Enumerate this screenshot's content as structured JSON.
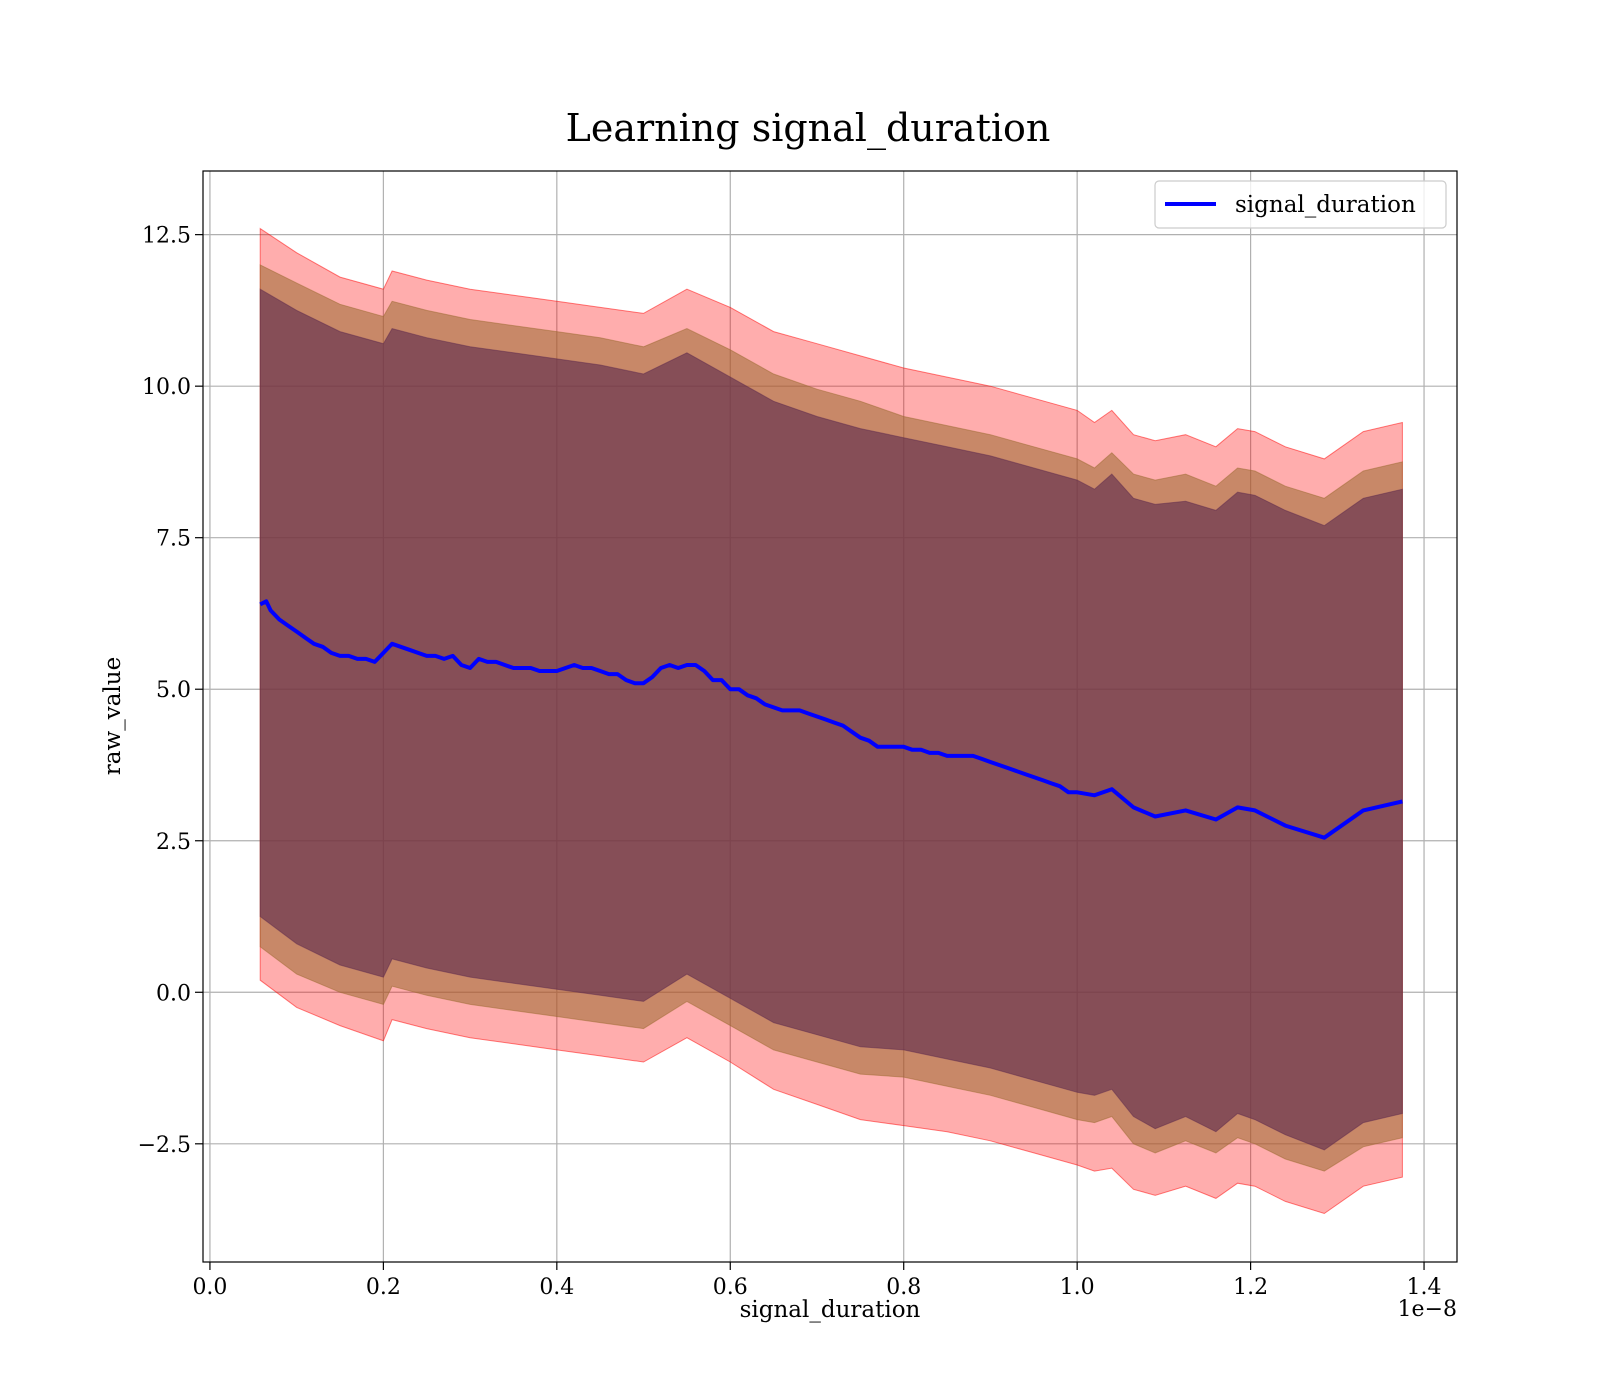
{
  "chart_data": {
    "type": "line",
    "title": "Learning signal_duration",
    "xlabel": "signal_duration",
    "ylabel": "raw_value",
    "x_offset_label": "1e−8",
    "xlim": [
      -0.008,
      1.438
    ],
    "ylim": [
      -4.45,
      13.55
    ],
    "x_ticks": [
      0.0,
      0.2,
      0.4,
      0.6,
      0.8,
      1.0,
      1.2,
      1.4
    ],
    "x_tick_labels": [
      "0.0",
      "0.2",
      "0.4",
      "0.6",
      "0.8",
      "1.0",
      "1.2",
      "1.4"
    ],
    "y_ticks": [
      -2.5,
      0.0,
      2.5,
      5.0,
      7.5,
      10.0,
      12.5
    ],
    "y_tick_labels": [
      "−2.5",
      "0.0",
      "2.5",
      "5.0",
      "7.5",
      "10.0",
      "12.5"
    ],
    "grid": true,
    "legend": {
      "placement": "top-right",
      "entries": [
        "signal_duration"
      ]
    },
    "colors": {
      "line": "#0000ff",
      "band_outer": "#ff0000",
      "band_middle": "#9b6a2f",
      "band_inner": "#5e2a4e"
    },
    "series": [
      {
        "name": "signal_duration",
        "x": [
          0.058,
          0.065,
          0.07,
          0.08,
          0.09,
          0.1,
          0.11,
          0.12,
          0.13,
          0.14,
          0.15,
          0.16,
          0.17,
          0.18,
          0.19,
          0.2,
          0.21,
          0.22,
          0.23,
          0.24,
          0.25,
          0.26,
          0.27,
          0.28,
          0.29,
          0.3,
          0.31,
          0.32,
          0.33,
          0.34,
          0.35,
          0.36,
          0.37,
          0.38,
          0.39,
          0.4,
          0.41,
          0.42,
          0.43,
          0.44,
          0.45,
          0.46,
          0.47,
          0.48,
          0.49,
          0.5,
          0.51,
          0.52,
          0.53,
          0.54,
          0.55,
          0.56,
          0.57,
          0.58,
          0.59,
          0.6,
          0.61,
          0.62,
          0.63,
          0.64,
          0.65,
          0.66,
          0.67,
          0.68,
          0.69,
          0.7,
          0.71,
          0.72,
          0.73,
          0.74,
          0.75,
          0.76,
          0.77,
          0.78,
          0.79,
          0.8,
          0.81,
          0.82,
          0.83,
          0.84,
          0.85,
          0.86,
          0.87,
          0.88,
          0.89,
          0.9,
          0.91,
          0.92,
          0.93,
          0.94,
          0.95,
          0.96,
          0.97,
          0.98,
          0.99,
          1.0,
          1.02,
          1.04,
          1.065,
          1.09,
          1.125,
          1.16,
          1.185,
          1.205,
          1.24,
          1.285,
          1.33,
          1.375
        ],
        "y": [
          6.4,
          6.45,
          6.3,
          6.15,
          6.05,
          5.95,
          5.85,
          5.75,
          5.7,
          5.6,
          5.55,
          5.55,
          5.5,
          5.5,
          5.45,
          5.6,
          5.75,
          5.7,
          5.65,
          5.6,
          5.55,
          5.55,
          5.5,
          5.55,
          5.4,
          5.35,
          5.5,
          5.45,
          5.45,
          5.4,
          5.35,
          5.35,
          5.35,
          5.3,
          5.3,
          5.3,
          5.35,
          5.4,
          5.35,
          5.35,
          5.3,
          5.25,
          5.25,
          5.15,
          5.1,
          5.1,
          5.2,
          5.35,
          5.4,
          5.35,
          5.4,
          5.4,
          5.3,
          5.15,
          5.15,
          5.0,
          5.0,
          4.9,
          4.85,
          4.75,
          4.7,
          4.65,
          4.65,
          4.65,
          4.6,
          4.55,
          4.5,
          4.45,
          4.4,
          4.3,
          4.2,
          4.15,
          4.05,
          4.05,
          4.05,
          4.05,
          4.0,
          4.0,
          3.95,
          3.95,
          3.9,
          3.9,
          3.9,
          3.9,
          3.85,
          3.8,
          3.75,
          3.7,
          3.65,
          3.6,
          3.55,
          3.5,
          3.45,
          3.4,
          3.3,
          3.3,
          3.25,
          3.35,
          3.05,
          2.9,
          3.0,
          2.85,
          3.05,
          3.0,
          2.75,
          2.55,
          3.0,
          3.15
        ]
      }
    ],
    "bands": [
      {
        "x": [
          0.058,
          0.1,
          0.15,
          0.2,
          0.21,
          0.25,
          0.3,
          0.35,
          0.4,
          0.45,
          0.5,
          0.55,
          0.6,
          0.65,
          0.7,
          0.75,
          0.8,
          0.85,
          0.9,
          0.95,
          1.0,
          1.02,
          1.04,
          1.065,
          1.09,
          1.125,
          1.16,
          1.185,
          1.205,
          1.24,
          1.285,
          1.33,
          1.375
        ],
        "upper": [
          12.6,
          12.2,
          11.8,
          11.6,
          11.9,
          11.75,
          11.6,
          11.5,
          11.4,
          11.3,
          11.2,
          11.6,
          11.3,
          10.9,
          10.7,
          10.5,
          10.3,
          10.15,
          10.0,
          9.8,
          9.6,
          9.4,
          9.6,
          9.2,
          9.1,
          9.2,
          9.0,
          9.3,
          9.25,
          9.0,
          8.8,
          9.25,
          9.4
        ],
        "lower": [
          0.2,
          -0.25,
          -0.55,
          -0.8,
          -0.45,
          -0.6,
          -0.75,
          -0.85,
          -0.95,
          -1.05,
          -1.15,
          -0.75,
          -1.15,
          -1.6,
          -1.85,
          -2.1,
          -2.2,
          -2.3,
          -2.45,
          -2.65,
          -2.85,
          -2.95,
          -2.9,
          -3.25,
          -3.35,
          -3.2,
          -3.4,
          -3.15,
          -3.2,
          -3.45,
          -3.65,
          -3.2,
          -3.05
        ]
      },
      {
        "x": [
          0.058,
          0.1,
          0.15,
          0.2,
          0.21,
          0.25,
          0.3,
          0.35,
          0.4,
          0.45,
          0.5,
          0.55,
          0.6,
          0.65,
          0.7,
          0.75,
          0.8,
          0.85,
          0.9,
          0.95,
          1.0,
          1.02,
          1.04,
          1.065,
          1.09,
          1.125,
          1.16,
          1.185,
          1.205,
          1.24,
          1.285,
          1.33,
          1.375
        ],
        "upper": [
          12.0,
          11.7,
          11.35,
          11.15,
          11.4,
          11.25,
          11.1,
          11.0,
          10.9,
          10.8,
          10.65,
          10.95,
          10.6,
          10.2,
          9.95,
          9.75,
          9.5,
          9.35,
          9.2,
          9.0,
          8.8,
          8.65,
          8.9,
          8.55,
          8.45,
          8.55,
          8.35,
          8.65,
          8.6,
          8.35,
          8.15,
          8.6,
          8.75
        ],
        "lower": [
          0.75,
          0.3,
          0.0,
          -0.2,
          0.1,
          -0.05,
          -0.2,
          -0.3,
          -0.4,
          -0.5,
          -0.6,
          -0.15,
          -0.55,
          -0.95,
          -1.15,
          -1.35,
          -1.4,
          -1.55,
          -1.7,
          -1.9,
          -2.1,
          -2.15,
          -2.05,
          -2.5,
          -2.65,
          -2.45,
          -2.65,
          -2.4,
          -2.5,
          -2.75,
          -2.95,
          -2.55,
          -2.4
        ]
      },
      {
        "x": [
          0.058,
          0.1,
          0.15,
          0.2,
          0.21,
          0.25,
          0.3,
          0.35,
          0.4,
          0.45,
          0.5,
          0.55,
          0.6,
          0.65,
          0.7,
          0.75,
          0.8,
          0.85,
          0.9,
          0.95,
          1.0,
          1.02,
          1.04,
          1.065,
          1.09,
          1.125,
          1.16,
          1.185,
          1.205,
          1.24,
          1.285,
          1.33,
          1.375
        ],
        "upper": [
          11.6,
          11.25,
          10.9,
          10.7,
          10.95,
          10.8,
          10.65,
          10.55,
          10.45,
          10.35,
          10.2,
          10.55,
          10.15,
          9.75,
          9.5,
          9.3,
          9.15,
          9.0,
          8.85,
          8.65,
          8.45,
          8.3,
          8.55,
          8.15,
          8.05,
          8.1,
          7.95,
          8.25,
          8.2,
          7.95,
          7.7,
          8.15,
          8.3
        ],
        "lower": [
          1.25,
          0.8,
          0.45,
          0.25,
          0.55,
          0.4,
          0.25,
          0.15,
          0.05,
          -0.05,
          -0.15,
          0.3,
          -0.1,
          -0.5,
          -0.7,
          -0.9,
          -0.95,
          -1.1,
          -1.25,
          -1.45,
          -1.65,
          -1.7,
          -1.6,
          -2.05,
          -2.25,
          -2.05,
          -2.3,
          -2.0,
          -2.1,
          -2.35,
          -2.6,
          -2.15,
          -2.0
        ]
      }
    ]
  }
}
